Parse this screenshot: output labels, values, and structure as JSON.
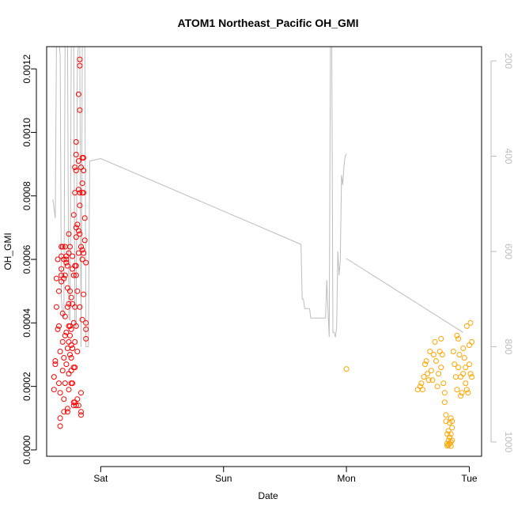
{
  "chart_data": {
    "type": "scatter",
    "title": "ATOM1 Northeast_Pacific OH_GMI",
    "xlabel": "Date",
    "ylabel": "OH_GMI",
    "xlim": [
      -0.44,
      3.1
    ],
    "ylim": [
      -2e-05,
      0.00127
    ],
    "y2lim": [
      1030,
      170
    ],
    "x_ticks": [
      {
        "value": 0,
        "label": "Sat"
      },
      {
        "value": 1,
        "label": "Sun"
      },
      {
        "value": 2,
        "label": "Mon"
      },
      {
        "value": 3,
        "label": "Tue"
      }
    ],
    "y_ticks": [
      {
        "value": 0.0,
        "label": "0.0000"
      },
      {
        "value": 0.0002,
        "label": "0.0002"
      },
      {
        "value": 0.0004,
        "label": "0.0004"
      },
      {
        "value": 0.0006,
        "label": "0.0006"
      },
      {
        "value": 0.0008,
        "label": "0.0008"
      },
      {
        "value": 0.001,
        "label": "0.0010"
      },
      {
        "value": 0.0012,
        "label": "0.0012"
      }
    ],
    "y2_ticks": [
      {
        "value": 200,
        "label": "200"
      },
      {
        "value": 400,
        "label": "400"
      },
      {
        "value": 600,
        "label": "600"
      },
      {
        "value": 800,
        "label": "800"
      },
      {
        "value": 1000,
        "label": "1000"
      }
    ],
    "grid": false,
    "series": [
      {
        "color": "#ff0000",
        "marker": "open-circle",
        "points": [
          [
            -0.38,
            0.00019
          ],
          [
            -0.38,
            0.00023
          ],
          [
            -0.37,
            0.00027
          ],
          [
            -0.37,
            0.00028
          ],
          [
            -0.36,
            0.00045
          ],
          [
            -0.36,
            0.00054
          ],
          [
            -0.35,
            0.00038
          ],
          [
            -0.35,
            0.0006
          ],
          [
            -0.34,
            0.00039
          ],
          [
            -0.34,
            0.0005
          ],
          [
            -0.34,
            0.00021
          ],
          [
            -0.33,
            0.00018
          ],
          [
            -0.33,
            0.00031
          ],
          [
            -0.33,
            0.0001
          ],
          [
            -0.33,
            7.5e-05
          ],
          [
            -0.32,
            0.00055
          ],
          [
            -0.32,
            0.00057
          ],
          [
            -0.32,
            0.00053
          ],
          [
            -0.32,
            0.00061
          ],
          [
            -0.32,
            0.00064
          ],
          [
            -0.31,
            0.00043
          ],
          [
            -0.31,
            0.00064
          ],
          [
            -0.31,
            0.00034
          ],
          [
            -0.31,
            0.00025
          ],
          [
            -0.3,
            0.0006
          ],
          [
            -0.3,
            0.00054
          ],
          [
            -0.3,
            0.00029
          ],
          [
            -0.3,
            0.00016
          ],
          [
            -0.3,
            0.00012
          ],
          [
            -0.29,
            0.00042
          ],
          [
            -0.29,
            0.00064
          ],
          [
            -0.29,
            0.00055
          ],
          [
            -0.29,
            0.00036
          ],
          [
            -0.29,
            0.00021
          ],
          [
            -0.28,
            0.0006
          ],
          [
            -0.28,
            0.00061
          ],
          [
            -0.28,
            0.00059
          ],
          [
            -0.28,
            0.00037
          ],
          [
            -0.28,
            0.00027
          ],
          [
            -0.27,
            0.00045
          ],
          [
            -0.27,
            0.00058
          ],
          [
            -0.27,
            0.00051
          ],
          [
            -0.27,
            0.00032
          ],
          [
            -0.27,
            0.00013
          ],
          [
            -0.27,
            0.00012
          ],
          [
            -0.26,
            0.00062
          ],
          [
            -0.26,
            0.00068
          ],
          [
            -0.26,
            0.00046
          ],
          [
            -0.26,
            0.00039
          ],
          [
            -0.26,
            0.00034
          ],
          [
            -0.26,
            0.00024
          ],
          [
            -0.26,
            0.00019
          ],
          [
            -0.25,
            0.00064
          ],
          [
            -0.25,
            0.0005
          ],
          [
            -0.25,
            0.00039
          ],
          [
            -0.25,
            0.00036
          ],
          [
            -0.25,
            0.0003
          ],
          [
            -0.24,
            0.00048
          ],
          [
            -0.24,
            0.00038
          ],
          [
            -0.24,
            0.00033
          ],
          [
            -0.24,
            0.00029
          ],
          [
            -0.24,
            0.00025
          ],
          [
            -0.24,
            0.00021
          ],
          [
            -0.23,
            0.00061
          ],
          [
            -0.23,
            0.00057
          ],
          [
            -0.23,
            0.00046
          ],
          [
            -0.23,
            0.00032
          ],
          [
            -0.23,
            0.00021
          ],
          [
            -0.22,
            0.00074
          ],
          [
            -0.22,
            0.00055
          ],
          [
            -0.22,
            0.0004
          ],
          [
            -0.22,
            0.00026
          ],
          [
            -0.22,
            0.00015
          ],
          [
            -0.22,
            0.00014
          ],
          [
            -0.21,
            0.00081
          ],
          [
            -0.21,
            0.00089
          ],
          [
            -0.21,
            0.00058
          ],
          [
            -0.21,
            0.00045
          ],
          [
            -0.21,
            0.00034
          ],
          [
            -0.21,
            0.00026
          ],
          [
            -0.21,
            0.00015
          ],
          [
            -0.2,
            0.00097
          ],
          [
            -0.2,
            0.00093
          ],
          [
            -0.2,
            0.00088
          ],
          [
            -0.2,
            0.0007
          ],
          [
            -0.2,
            0.00067
          ],
          [
            -0.2,
            0.00058
          ],
          [
            -0.2,
            0.00055
          ],
          [
            -0.2,
            0.00039
          ],
          [
            -0.2,
            0.00014
          ],
          [
            -0.19,
            0.00071
          ],
          [
            -0.19,
            0.0005
          ],
          [
            -0.19,
            0.00031
          ],
          [
            -0.19,
            0.00016
          ],
          [
            -0.18,
            0.00112
          ],
          [
            -0.18,
            0.00091
          ],
          [
            -0.18,
            0.00082
          ],
          [
            -0.18,
            0.00069
          ],
          [
            -0.18,
            0.00062
          ],
          [
            -0.18,
            0.00014
          ],
          [
            -0.17,
            0.00123
          ],
          [
            -0.17,
            0.00121
          ],
          [
            -0.17,
            0.00107
          ],
          [
            -0.17,
            0.00081
          ],
          [
            -0.17,
            0.00077
          ],
          [
            -0.17,
            0.00068
          ],
          [
            -0.17,
            0.00045
          ],
          [
            -0.16,
            0.00089
          ],
          [
            -0.16,
            0.00064
          ],
          [
            -0.16,
            0.00018
          ],
          [
            -0.16,
            0.00012
          ],
          [
            -0.16,
            0.00011
          ],
          [
            -0.15,
            0.00092
          ],
          [
            -0.15,
            0.00084
          ],
          [
            -0.15,
            0.00081
          ],
          [
            -0.15,
            0.00063
          ],
          [
            -0.15,
            0.0006
          ],
          [
            -0.15,
            0.00041
          ],
          [
            -0.14,
            0.00092
          ],
          [
            -0.14,
            0.00088
          ],
          [
            -0.14,
            0.00081
          ],
          [
            -0.14,
            0.00062
          ],
          [
            -0.14,
            0.00049
          ],
          [
            -0.13,
            0.00073
          ],
          [
            -0.13,
            0.00066
          ],
          [
            -0.12,
            0.00059
          ],
          [
            -0.12,
            0.0004
          ],
          [
            -0.12,
            0.00038
          ],
          [
            -0.12,
            0.00035
          ]
        ]
      },
      {
        "color": "#ffa500",
        "marker": "open-circle",
        "points": [
          [
            2.0,
            0.000255
          ],
          [
            2.58,
            0.00019
          ],
          [
            2.6,
            0.0002
          ],
          [
            2.61,
            0.00021
          ],
          [
            2.62,
            0.00019
          ],
          [
            2.63,
            0.00023
          ],
          [
            2.64,
            0.00027
          ],
          [
            2.65,
            0.00028
          ],
          [
            2.66,
            0.00024
          ],
          [
            2.67,
            0.00022
          ],
          [
            2.68,
            0.00031
          ],
          [
            2.69,
            0.00025
          ],
          [
            2.7,
            0.00022
          ],
          [
            2.71,
            0.0003
          ],
          [
            2.72,
            0.00034
          ],
          [
            2.73,
            0.00028
          ],
          [
            2.74,
            0.0002
          ],
          [
            2.75,
            0.00024
          ],
          [
            2.76,
            0.00031
          ],
          [
            2.77,
            0.00035
          ],
          [
            2.77,
            0.00026
          ],
          [
            2.78,
            0.0003
          ],
          [
            2.79,
            0.00021
          ],
          [
            2.8,
            0.00018
          ],
          [
            2.8,
            0.00015
          ],
          [
            2.81,
            0.00011
          ],
          [
            2.81,
            9e-05
          ],
          [
            2.82,
            5e-05
          ],
          [
            2.82,
            2e-05
          ],
          [
            2.82,
            1.3e-05
          ],
          [
            2.83,
            6e-05
          ],
          [
            2.83,
            3e-05
          ],
          [
            2.83,
            1.5e-05
          ],
          [
            2.84,
            8.5e-05
          ],
          [
            2.84,
            4e-05
          ],
          [
            2.84,
            2e-05
          ],
          [
            2.85,
            0.0001
          ],
          [
            2.85,
            5e-05
          ],
          [
            2.85,
            2.5e-05
          ],
          [
            2.85,
            1.2e-05
          ],
          [
            2.86,
            9e-05
          ],
          [
            2.86,
            7e-05
          ],
          [
            2.86,
            3e-05
          ],
          [
            2.87,
            0.00031
          ],
          [
            2.88,
            0.00027
          ],
          [
            2.89,
            0.00023
          ],
          [
            2.9,
            0.00036
          ],
          [
            2.9,
            0.00019
          ],
          [
            2.91,
            0.00035
          ],
          [
            2.91,
            0.00026
          ],
          [
            2.92,
            0.0003
          ],
          [
            2.93,
            0.00023
          ],
          [
            2.93,
            0.00017
          ],
          [
            2.94,
            0.00018
          ],
          [
            2.95,
            0.00024
          ],
          [
            2.95,
            0.00032
          ],
          [
            2.96,
            0.00029
          ],
          [
            2.97,
            0.00026
          ],
          [
            2.97,
            0.00021
          ],
          [
            2.98,
            0.00039
          ],
          [
            2.98,
            0.00019
          ],
          [
            2.99,
            0.00018
          ],
          [
            3.0,
            0.00033
          ],
          [
            3.0,
            0.00027
          ],
          [
            3.01,
            0.00024
          ],
          [
            3.01,
            0.0004
          ],
          [
            3.02,
            0.00023
          ],
          [
            3.02,
            0.00034
          ]
        ]
      }
    ],
    "pressure_series": {
      "color": "#bdbdbd",
      "axis": "right",
      "segments": [
        [
          [
            -0.39,
            490
          ],
          [
            -0.37,
            530
          ],
          [
            -0.36,
            160
          ],
          [
            -0.35,
            140
          ],
          [
            -0.34,
            150
          ],
          [
            -0.33,
            190
          ],
          [
            -0.32,
            700
          ],
          [
            -0.31,
            730
          ],
          [
            -0.3,
            740
          ],
          [
            -0.29,
            160
          ],
          [
            -0.28,
            150
          ],
          [
            -0.27,
            160
          ],
          [
            -0.26,
            740
          ],
          [
            -0.25,
            745
          ],
          [
            -0.24,
            170
          ],
          [
            -0.23,
            160
          ],
          [
            -0.22,
            165
          ],
          [
            -0.21,
            750
          ],
          [
            -0.2,
            760
          ],
          [
            -0.19,
            200
          ],
          [
            -0.18,
            160
          ],
          [
            -0.17,
            170
          ],
          [
            -0.16,
            800
          ],
          [
            -0.15,
            160
          ],
          [
            -0.14,
            150
          ],
          [
            -0.13,
            160
          ],
          [
            -0.12,
            800
          ],
          [
            -0.1,
            800
          ],
          [
            -0.09,
            410
          ],
          [
            0.0,
            405
          ],
          [
            1.63,
            585
          ],
          [
            1.64,
            700
          ],
          [
            1.65,
            700
          ],
          [
            1.66,
            720
          ],
          [
            1.7,
            720
          ],
          [
            1.71,
            740
          ],
          [
            1.83,
            740
          ],
          [
            1.84,
            660
          ],
          [
            1.86,
            780
          ],
          [
            1.87,
            160
          ],
          [
            1.88,
            150
          ],
          [
            1.89,
            770
          ],
          [
            1.9,
            770
          ],
          [
            1.91,
            780
          ]
        ],
        [
          [
            2.0,
            615
          ],
          [
            2.95,
            770
          ]
        ],
        [
          [
            1.91,
            780
          ],
          [
            1.92,
            760
          ],
          [
            1.93,
            600
          ],
          [
            1.94,
            650
          ],
          [
            1.95,
            620
          ],
          [
            1.96,
            440
          ],
          [
            1.97,
            460
          ],
          [
            1.98,
            420
          ],
          [
            1.99,
            400
          ],
          [
            2.0,
            395
          ]
        ]
      ]
    }
  }
}
